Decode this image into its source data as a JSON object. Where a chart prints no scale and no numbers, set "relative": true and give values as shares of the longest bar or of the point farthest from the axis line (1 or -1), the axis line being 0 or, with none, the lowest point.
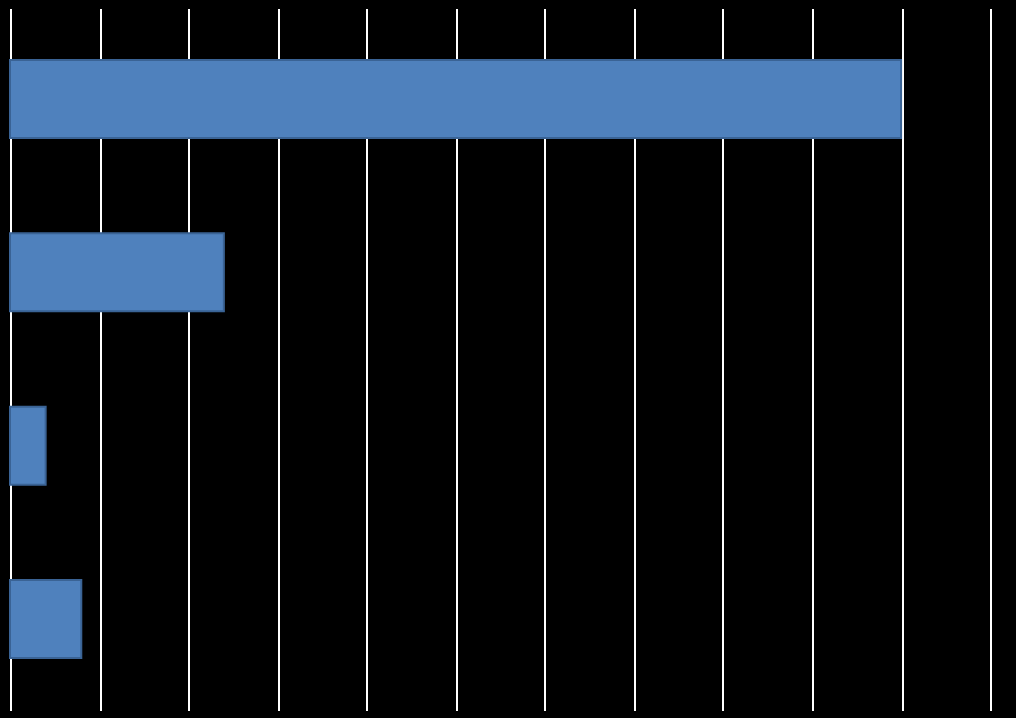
{
  "chart_data": {
    "type": "bar",
    "orientation": "horizontal",
    "relative": true,
    "categories": [
      null,
      null,
      null,
      null
    ],
    "values": [
      1,
      0.24,
      0.04,
      0.08
    ],
    "color": "#4f81bd",
    "grid": "x"
  }
}
